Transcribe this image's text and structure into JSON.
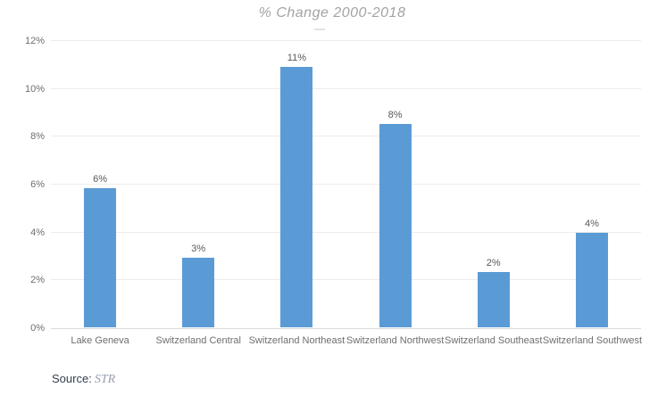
{
  "title": "% Change 2000-2018",
  "source": {
    "prefix": "Source:",
    "name": "STR"
  },
  "colors": {
    "bar": "#5b9bd5",
    "title": "#a3a3a3",
    "axis_label": "#6e6e6e",
    "bar_label": "#595959",
    "gridline": "#ececec",
    "baseline": "#d9d9d9",
    "source_prefix": "#333f50",
    "source_name": "#97a0b0"
  },
  "chart_data": {
    "type": "bar",
    "title": "% Change 2000-2018",
    "categories": [
      "Lake Geneva",
      "Switzerland Central",
      "Switzerland Northeast",
      "Switzerland Northwest",
      "Switzerland Southeast",
      "Switzerland Southwest"
    ],
    "values": [
      5.8,
      2.9,
      10.9,
      8.5,
      2.3,
      3.95
    ],
    "bar_labels": [
      "6%",
      "3%",
      "11%",
      "8%",
      "2%",
      "4%"
    ],
    "xlabel": "",
    "ylabel": "",
    "ylim": [
      0,
      12
    ],
    "yticks": [
      0,
      2,
      4,
      6,
      8,
      10,
      12
    ],
    "ytick_labels": [
      "0%",
      "2%",
      "4%",
      "6%",
      "8%",
      "10%",
      "12%"
    ],
    "grid": true,
    "legend": "none"
  }
}
